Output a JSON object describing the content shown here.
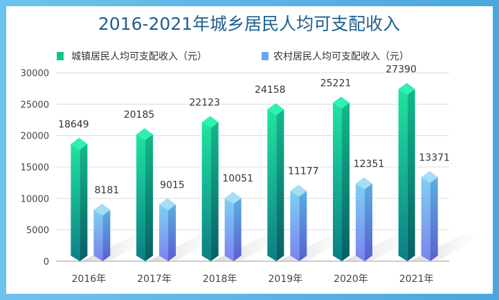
{
  "chart_data": {
    "type": "bar",
    "title": "2016-2021年城乡居民人均可支配收入",
    "categories": [
      "2016年",
      "2017年",
      "2018年",
      "2019年",
      "2020年",
      "2021年"
    ],
    "series": [
      {
        "name": "城镇居民人均可支配收入（元）",
        "values": [
          18649,
          20185,
          22123,
          24158,
          25221,
          27390
        ],
        "color": "#12c48b"
      },
      {
        "name": "农村居民人均可支配收入（元）",
        "values": [
          8181,
          9015,
          10051,
          11177,
          12351,
          13371
        ],
        "color": "#6aa6ee"
      }
    ],
    "ylim": [
      0,
      30000
    ],
    "yticks": [
      0,
      5000,
      10000,
      15000,
      20000,
      25000,
      30000
    ],
    "grid": true,
    "legend_position": "top-left"
  }
}
